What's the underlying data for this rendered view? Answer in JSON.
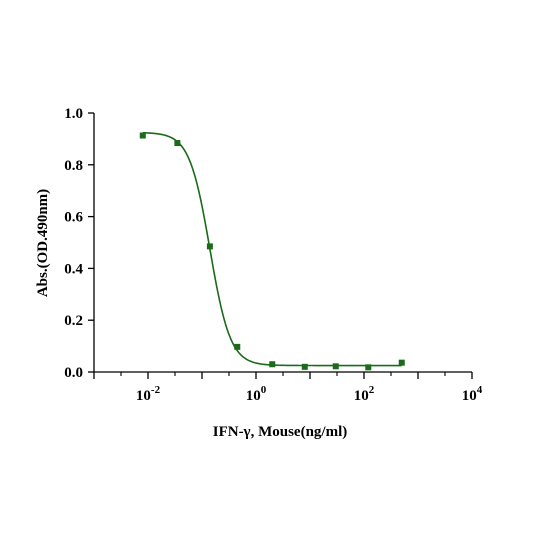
{
  "chart_data": {
    "type": "scatter",
    "xlabel": "IFN-γ, Mouse(ng/ml)",
    "ylabel": "Abs.(OD.490nm)",
    "x_scale": "log10",
    "xlim": [
      0.001,
      10000
    ],
    "ylim": [
      0,
      1.0
    ],
    "x_ticks": [
      {
        "value": 0.01,
        "base": "10",
        "exp": "-2"
      },
      {
        "value": 1,
        "base": "10",
        "exp": "0"
      },
      {
        "value": 100,
        "base": "10",
        "exp": "2"
      },
      {
        "value": 10000,
        "base": "10",
        "exp": "4"
      }
    ],
    "y_ticks": [
      {
        "value": 0.0,
        "label": "0.0"
      },
      {
        "value": 0.2,
        "label": "0.2"
      },
      {
        "value": 0.4,
        "label": "0.4"
      },
      {
        "value": 0.6,
        "label": "0.6"
      },
      {
        "value": 0.8,
        "label": "0.8"
      },
      {
        "value": 1.0,
        "label": "1.0"
      }
    ],
    "series": [
      {
        "color": "#1a6b1a",
        "marker": "square",
        "points": [
          {
            "x": 0.008,
            "y": 0.913
          },
          {
            "x": 0.035,
            "y": 0.884
          },
          {
            "x": 0.14,
            "y": 0.485
          },
          {
            "x": 0.45,
            "y": 0.097
          },
          {
            "x": 2.0,
            "y": 0.03
          },
          {
            "x": 8.0,
            "y": 0.02
          },
          {
            "x": 30.0,
            "y": 0.022
          },
          {
            "x": 120.0,
            "y": 0.018
          },
          {
            "x": 500.0,
            "y": 0.036
          }
        ]
      }
    ],
    "fit_curve": {
      "model": "4PL",
      "top": 0.925,
      "bottom": 0.025,
      "ec50": 0.14,
      "hill": 2.3,
      "color": "#1a6b1a"
    },
    "grid": false,
    "legend": "none"
  }
}
